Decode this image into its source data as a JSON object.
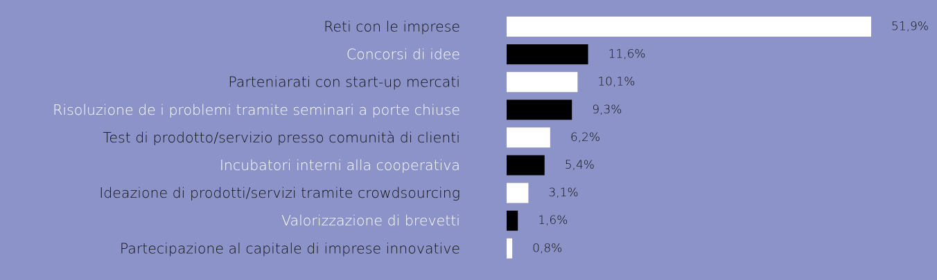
{
  "colors": {
    "background": "#8c93c8",
    "label_white": "#ffffff",
    "label_dark": "#111111",
    "bar_white": "#ffffff",
    "bar_black": "#000000"
  },
  "chart_data": {
    "type": "bar",
    "orientation": "horizontal",
    "title": "",
    "xlabel": "",
    "ylabel": "",
    "grid": false,
    "xlim": [
      0,
      51.9
    ],
    "unit": "%",
    "categories": [
      "Reti con le imprese",
      "Concorsi di idee",
      "Parteniarati con start-up mercati",
      "Risoluzione de i problemi tramite seminari a porte chiuse",
      "Test di prodotto/servizio presso comunità di clienti",
      "Incubatori interni alla cooperativa",
      "Ideazione di prodotti/servizi tramite crowdsourcing",
      "Valorizzazione di brevetti",
      "Partecipazione al capitale di imprese innovative"
    ],
    "values": [
      51.9,
      11.6,
      10.1,
      9.3,
      6.2,
      5.4,
      3.1,
      1.6,
      0.8
    ],
    "value_labels": [
      "51,9%",
      "11,6%",
      "10,1%",
      "9,3%",
      "6,2%",
      "5,4%",
      "3,1%",
      "1,6%",
      "0,8%"
    ],
    "bar_colors": [
      "#ffffff",
      "#000000",
      "#ffffff",
      "#000000",
      "#ffffff",
      "#000000",
      "#ffffff",
      "#000000",
      "#ffffff"
    ],
    "label_colors": [
      "#111111",
      "#ffffff",
      "#111111",
      "#ffffff",
      "#111111",
      "#ffffff",
      "#111111",
      "#ffffff",
      "#111111"
    ]
  }
}
